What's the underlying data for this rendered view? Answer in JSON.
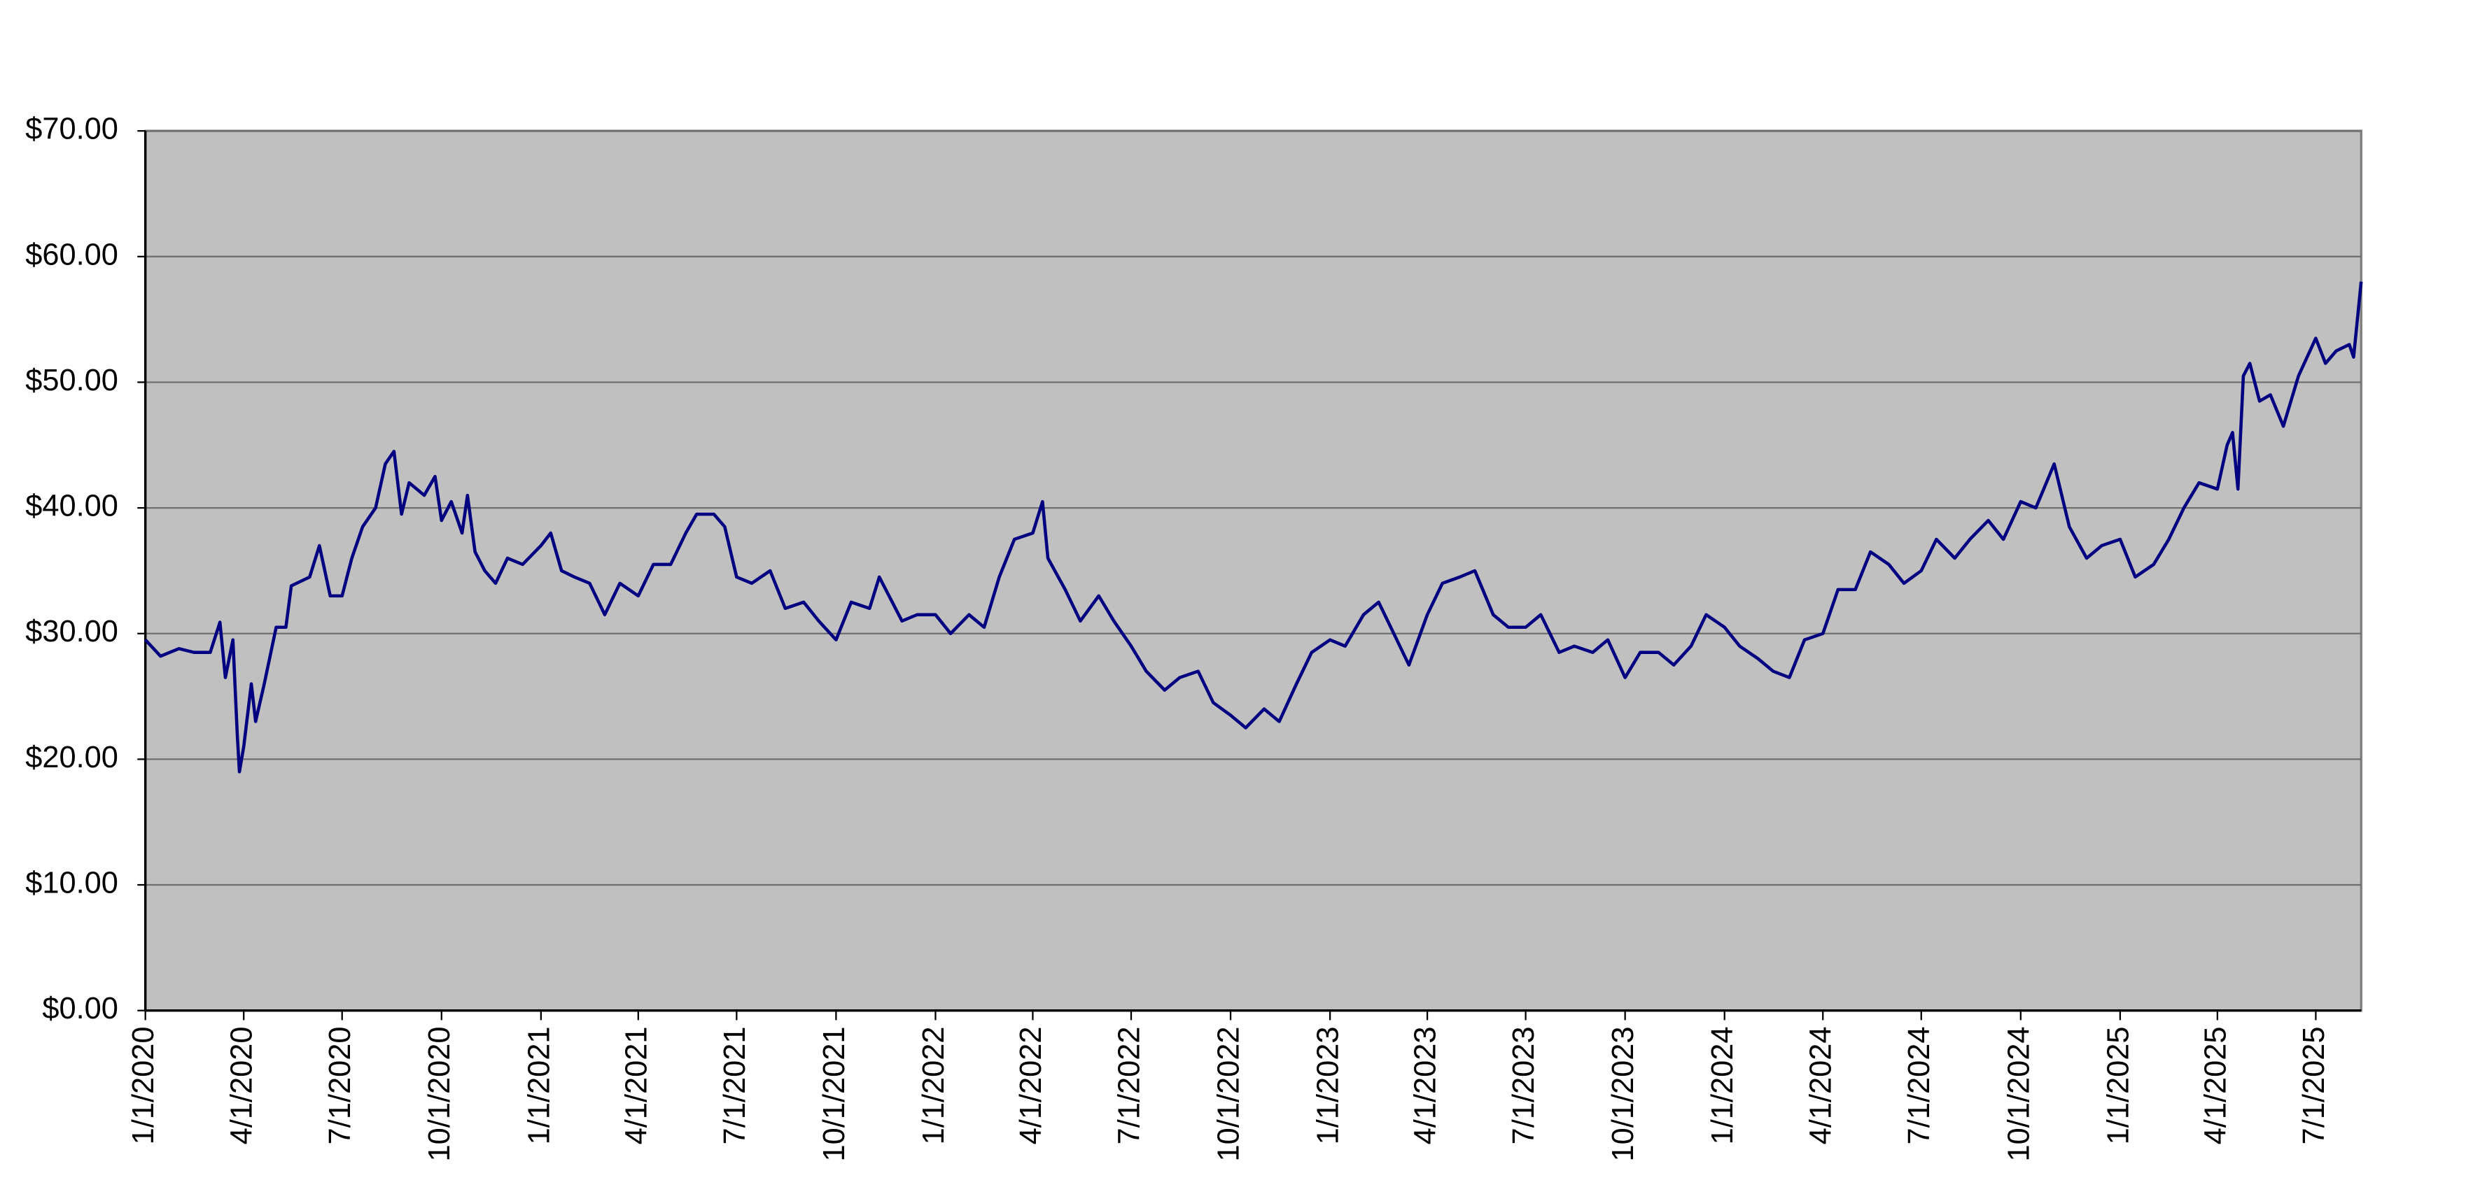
{
  "chart_data": {
    "type": "line",
    "x": [
      "1/1/2020",
      "1/15/2020",
      "2/1/2020",
      "2/15/2020",
      "3/1/2020",
      "3/10/2020",
      "3/15/2020",
      "3/22/2020",
      "3/26/2020",
      "3/28/2020",
      "4/1/2020",
      "4/8/2020",
      "4/12/2020",
      "4/20/2020",
      "5/1/2020",
      "5/10/2020",
      "5/15/2020",
      "6/1/2020",
      "6/10/2020",
      "6/20/2020",
      "7/1/2020",
      "7/10/2020",
      "7/20/2020",
      "8/1/2020",
      "8/10/2020",
      "8/18/2020",
      "8/25/2020",
      "9/1/2020",
      "9/15/2020",
      "9/25/2020",
      "10/1/2020",
      "10/10/2020",
      "10/20/2020",
      "10/25/2020",
      "11/1/2020",
      "11/10/2020",
      "11/20/2020",
      "12/1/2020",
      "12/15/2020",
      "1/1/2021",
      "1/10/2021",
      "1/20/2021",
      "2/1/2021",
      "2/15/2021",
      "3/1/2021",
      "3/15/2021",
      "4/1/2021",
      "4/15/2021",
      "5/1/2021",
      "5/15/2021",
      "5/25/2021",
      "6/10/2021",
      "6/20/2021",
      "7/1/2021",
      "7/15/2021",
      "8/1/2021",
      "8/15/2021",
      "9/1/2021",
      "9/15/2021",
      "10/1/2021",
      "10/15/2021",
      "11/1/2021",
      "11/10/2021",
      "12/1/2021",
      "12/15/2021",
      "1/1/2022",
      "1/15/2022",
      "2/1/2022",
      "2/15/2022",
      "3/1/2022",
      "3/15/2022",
      "4/1/2022",
      "4/10/2022",
      "4/15/2022",
      "5/1/2022",
      "5/15/2022",
      "6/1/2022",
      "6/15/2022",
      "7/1/2022",
      "7/15/2022",
      "8/1/2022",
      "8/15/2022",
      "9/1/2022",
      "9/15/2022",
      "10/1/2022",
      "10/15/2022",
      "11/1/2022",
      "11/15/2022",
      "12/1/2022",
      "12/15/2022",
      "1/1/2023",
      "1/15/2023",
      "2/1/2023",
      "2/15/2023",
      "3/1/2023",
      "3/15/2023",
      "4/1/2023",
      "4/15/2023",
      "5/1/2023",
      "5/15/2023",
      "6/1/2023",
      "6/15/2023",
      "7/1/2023",
      "7/15/2023",
      "8/1/2023",
      "8/15/2023",
      "9/1/2023",
      "9/15/2023",
      "10/1/2023",
      "10/15/2023",
      "11/1/2023",
      "11/15/2023",
      "12/1/2023",
      "12/15/2023",
      "1/1/2024",
      "1/15/2024",
      "2/1/2024",
      "2/15/2024",
      "3/1/2024",
      "3/15/2024",
      "4/1/2024",
      "4/15/2024",
      "5/1/2024",
      "5/15/2024",
      "6/1/2024",
      "6/15/2024",
      "7/1/2024",
      "7/15/2024",
      "8/1/2024",
      "8/15/2024",
      "9/1/2024",
      "9/15/2024",
      "10/1/2024",
      "10/15/2024",
      "11/1/2024",
      "11/15/2024",
      "12/1/2024",
      "12/15/2024",
      "1/1/2025",
      "1/15/2025",
      "2/1/2025",
      "2/15/2025",
      "3/1/2025",
      "3/15/2025",
      "4/1/2025",
      "4/10/2025",
      "4/15/2025",
      "4/20/2025",
      "4/25/2025",
      "5/1/2025",
      "5/10/2025",
      "5/20/2025",
      "6/1/2025",
      "6/15/2025",
      "7/1/2025",
      "7/10/2025",
      "7/20/2025",
      "8/1/2025",
      "8/5/2025",
      "8/12/2025"
    ],
    "series": [
      {
        "color": "#000080",
        "values": [
          29.5,
          28.2,
          28.8,
          28.5,
          28.5,
          30.9,
          26.5,
          29.5,
          22,
          19,
          21,
          26,
          23,
          26,
          30.5,
          30.5,
          33.8,
          34.5,
          37,
          33,
          33,
          36,
          38.5,
          40,
          43.5,
          44.5,
          39.5,
          42,
          41,
          42.5,
          39,
          40.5,
          38,
          41,
          36.5,
          35,
          34,
          36,
          35.5,
          37,
          38,
          35,
          34.5,
          34,
          31.5,
          34,
          33,
          35.5,
          35.5,
          38,
          39.5,
          39.5,
          38.5,
          34.5,
          34,
          35,
          32,
          32.5,
          31,
          29.5,
          32.5,
          32,
          34.5,
          31,
          31.5,
          31.5,
          30,
          31.5,
          30.5,
          34.5,
          37.5,
          38,
          40.5,
          36,
          33.5,
          31,
          33,
          31,
          29,
          27,
          25.5,
          26.5,
          27,
          24.5,
          23.5,
          22.5,
          24,
          23,
          26,
          28.5,
          29.5,
          29,
          31.5,
          32.5,
          30,
          27.5,
          31.5,
          34,
          34.5,
          35,
          31.5,
          30.5,
          30.5,
          31.5,
          28.5,
          29,
          28.5,
          29.5,
          26.5,
          28.5,
          28.5,
          27.5,
          29,
          31.5,
          30.5,
          29,
          28,
          27,
          26.5,
          29.5,
          30,
          33.5,
          33.5,
          36.5,
          35.5,
          34,
          35,
          37.5,
          36,
          37.5,
          39,
          37.5,
          40.5,
          40,
          43.5,
          38.5,
          36,
          37,
          37.5,
          34.5,
          35.5,
          37.5,
          40,
          42,
          41.5,
          45,
          46,
          41.5,
          50.5,
          51.5,
          48.5,
          49,
          46.5,
          50.5,
          53.5,
          51.5,
          52.5,
          53,
          52,
          58
        ]
      }
    ],
    "xlim": [
      "1/1/2020",
      "8/12/2025"
    ],
    "xticks": [
      "1/1/2020",
      "4/1/2020",
      "7/1/2020",
      "10/1/2020",
      "1/1/2021",
      "4/1/2021",
      "7/1/2021",
      "10/1/2021",
      "1/1/2022",
      "4/1/2022",
      "7/1/2022",
      "10/1/2022",
      "1/1/2023",
      "4/1/2023",
      "7/1/2023",
      "10/1/2023",
      "1/1/2024",
      "4/1/2024",
      "7/1/2024",
      "10/1/2024",
      "1/1/2025",
      "4/1/2025",
      "7/1/2025"
    ],
    "ylim": [
      0,
      70
    ],
    "yticks": [
      {
        "value": 0,
        "label": "$0.00"
      },
      {
        "value": 10,
        "label": "$10.00"
      },
      {
        "value": 20,
        "label": "$20.00"
      },
      {
        "value": 30,
        "label": "$30.00"
      },
      {
        "value": 40,
        "label": "$40.00"
      },
      {
        "value": 50,
        "label": "$50.00"
      },
      {
        "value": 60,
        "label": "$60.00"
      },
      {
        "value": 70,
        "label": "$70.00"
      }
    ],
    "grid": true,
    "background": "#c0c0c0"
  }
}
